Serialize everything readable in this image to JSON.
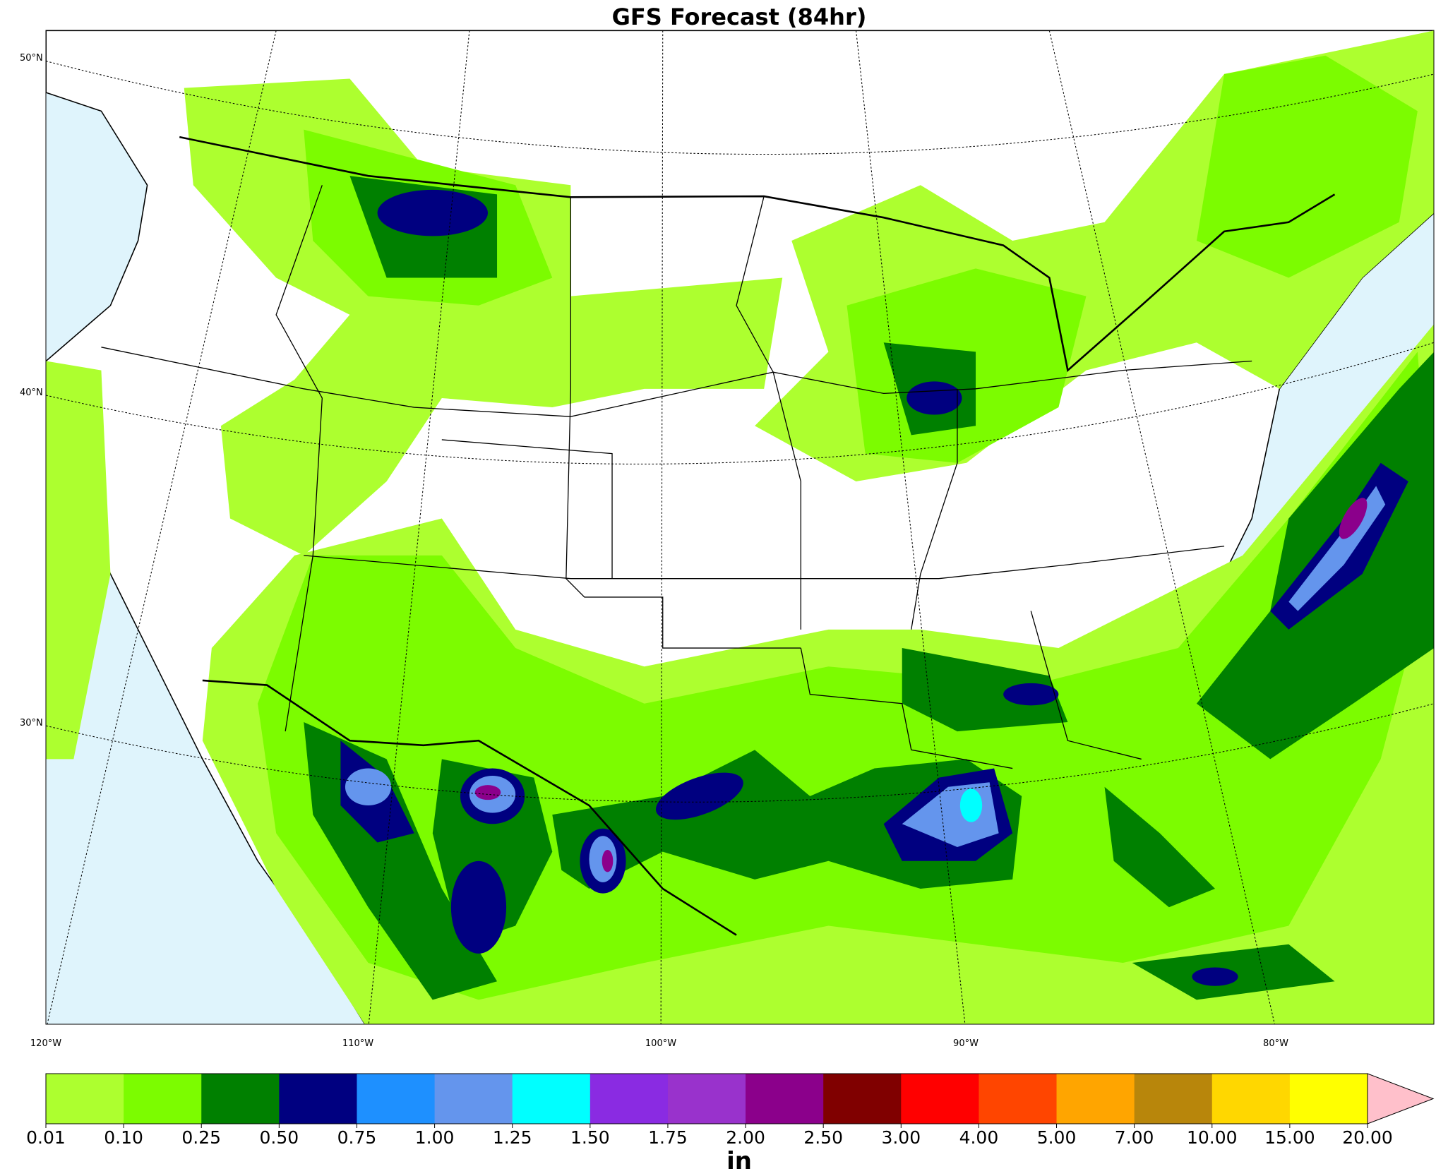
{
  "title": "GFS Forecast (84hr)",
  "map": {
    "lat_labels": [
      "50°N",
      "40°N",
      "30°N"
    ],
    "lon_labels": [
      "120°W",
      "110°W",
      "100°W",
      "90°W",
      "80°W"
    ]
  },
  "colorbar": {
    "colors": [
      "#adff2f",
      "#7cfc00",
      "#008000",
      "#000080",
      "#1e90ff",
      "#6495ed",
      "#00ffff",
      "#8a2be2",
      "#9932cc",
      "#8b008b",
      "#800000",
      "#ff0000",
      "#ff4500",
      "#ffa500",
      "#b8860b",
      "#ffd700",
      "#ffff00"
    ],
    "extend_color": "#ffc0cb",
    "tick_labels": [
      "0.01",
      "0.10",
      "0.25",
      "0.50",
      "0.75",
      "1.00",
      "1.25",
      "1.50",
      "1.75",
      "2.00",
      "2.50",
      "3.00",
      "4.00",
      "5.00",
      "7.00",
      "10.00",
      "15.00",
      "20.00"
    ],
    "unit": "in"
  }
}
